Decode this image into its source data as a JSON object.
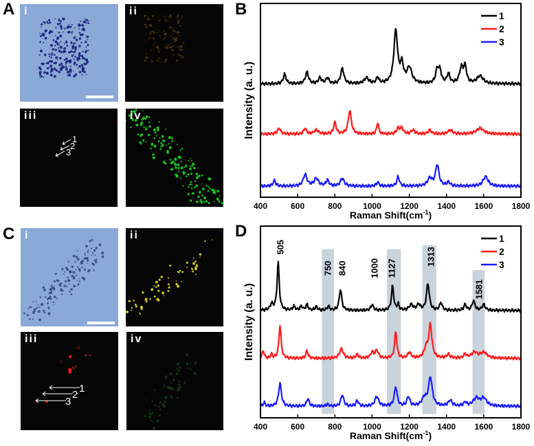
{
  "panel_labels": {
    "A": "A",
    "B": "B",
    "C": "C",
    "D": "D"
  },
  "subpanel_labels": {
    "i": "i",
    "ii": "ii",
    "iii": "iii",
    "iv": "iv"
  },
  "point_labels": [
    "1",
    "2",
    "3"
  ],
  "colors": {
    "series1": "#000000",
    "series2": "#ff1a1a",
    "series3": "#1a1aff",
    "band": "#c9d3dc",
    "green": "#22dd22",
    "yellow": "#d8d820",
    "red": "#ff2020",
    "brightfield": "#8aa9d6"
  },
  "chart_data": [
    {
      "id": "B",
      "type": "line",
      "title": "",
      "xlabel": "Raman Shift(cm-1)",
      "xlabel_main": "Raman Shift(cm",
      "xlabel_sup": "-1",
      "xlabel_close": ")",
      "ylabel": "Intensity (a. u.)",
      "xlim": [
        400,
        1800
      ],
      "ylim": [
        0,
        100
      ],
      "xticks": [
        "400",
        "600",
        "800",
        "1000",
        "1200",
        "1400",
        "1600",
        "1800"
      ],
      "grid": false,
      "legend": {
        "placement": "top-right",
        "entries": [
          "1",
          "2",
          "3"
        ]
      },
      "series": [
        {
          "name": "1",
          "baseline": 58.5,
          "peaks": [
            [
              530,
              5,
              9
            ],
            [
              650,
              6,
              10
            ],
            [
              720,
              3,
              10
            ],
            [
              760,
              3,
              9
            ],
            [
              840,
              8,
              10
            ],
            [
              970,
              3,
              14
            ],
            [
              1030,
              3,
              8
            ],
            [
              1127,
              27,
              12
            ],
            [
              1160,
              9,
              10
            ],
            [
              1200,
              8,
              16
            ],
            [
              1350,
              7,
              10
            ],
            [
              1365,
              6,
              9
            ],
            [
              1410,
              5,
              9
            ],
            [
              1480,
              8,
              12
            ],
            [
              1500,
              8,
              9
            ],
            [
              1580,
              4,
              20
            ]
          ]
        },
        {
          "name": "2",
          "baseline": 32.6,
          "peaks": [
            [
              500,
              3,
              10
            ],
            [
              640,
              3,
              8
            ],
            [
              700,
              2,
              14
            ],
            [
              800,
              6,
              8
            ],
            [
              880,
              12,
              10
            ],
            [
              1030,
              6,
              6
            ],
            [
              1140,
              3,
              9
            ],
            [
              1160,
              3,
              9
            ],
            [
              1220,
              2,
              12
            ],
            [
              1310,
              2,
              10
            ],
            [
              1420,
              2,
              14
            ],
            [
              1580,
              3,
              24
            ]
          ]
        },
        {
          "name": "3",
          "baseline": 5.7,
          "peaks": [
            [
              475,
              3,
              8
            ],
            [
              640,
              6,
              12
            ],
            [
              700,
              4,
              14
            ],
            [
              760,
              3,
              9
            ],
            [
              840,
              4,
              12
            ],
            [
              1030,
              2,
              8
            ],
            [
              1140,
              5,
              8
            ],
            [
              1310,
              4,
              14
            ],
            [
              1350,
              11,
              11
            ],
            [
              1410,
              2,
              10
            ],
            [
              1610,
              5,
              16
            ]
          ]
        }
      ]
    },
    {
      "id": "D",
      "type": "line",
      "title": "",
      "xlabel": "Raman Shift(cm-1)",
      "xlabel_main": "Raman Shift(cm",
      "xlabel_sup": "-1",
      "xlabel_close": ")",
      "ylabel": "Intensity (a. u.)",
      "xlim": [
        400,
        1800
      ],
      "ylim": [
        0,
        100
      ],
      "xticks": [
        "400",
        "600",
        "800",
        "1000",
        "1200",
        "1400",
        "1600",
        "1800"
      ],
      "grid": false,
      "legend": {
        "placement": "top-right",
        "entries": [
          "1",
          "2",
          "3"
        ]
      },
      "bands": [
        [
          730,
          795,
          88
        ],
        [
          1080,
          1155,
          88
        ],
        [
          1270,
          1345,
          90
        ],
        [
          1540,
          1605,
          77
        ]
      ],
      "annotations": [
        {
          "text": "505",
          "x": 507,
          "y": 89
        },
        {
          "text": "750",
          "x": 762,
          "y": 78
        },
        {
          "text": "840",
          "x": 840,
          "y": 78
        },
        {
          "text": "1000",
          "x": 1013,
          "y": 78
        },
        {
          "text": "1127",
          "x": 1105,
          "y": 78
        },
        {
          "text": "1313",
          "x": 1316,
          "y": 84
        },
        {
          "text": "1581",
          "x": 1575,
          "y": 67
        }
      ],
      "series": [
        {
          "name": "1",
          "baseline": 56,
          "peaks": [
            [
              495,
              25,
              7
            ],
            [
              460,
              3,
              10
            ],
            [
              580,
              2,
              8
            ],
            [
              620,
              2,
              8
            ],
            [
              650,
              3,
              7
            ],
            [
              700,
              2,
              8
            ],
            [
              765,
              2,
              8
            ],
            [
              830,
              11,
              8
            ],
            [
              1000,
              3,
              8
            ],
            [
              1110,
              13,
              7
            ],
            [
              1140,
              3,
              6
            ],
            [
              1210,
              3,
              12
            ],
            [
              1250,
              3,
              10
            ],
            [
              1300,
              14,
              9
            ],
            [
              1370,
              4,
              8
            ],
            [
              1500,
              3,
              8
            ],
            [
              1545,
              5,
              9
            ],
            [
              1600,
              3,
              10
            ]
          ]
        },
        {
          "name": "2",
          "baseline": 31,
          "peaks": [
            [
              415,
              4,
              6
            ],
            [
              460,
              2,
              6
            ],
            [
              505,
              17,
              7
            ],
            [
              650,
              4,
              7
            ],
            [
              835,
              5,
              12
            ],
            [
              920,
              2,
              8
            ],
            [
              1000,
              3,
              10
            ],
            [
              1025,
              4,
              10
            ],
            [
              1127,
              14,
              7
            ],
            [
              1200,
              3,
              10
            ],
            [
              1313,
              17,
              10
            ],
            [
              1290,
              5,
              12
            ],
            [
              1410,
              2,
              10
            ],
            [
              1500,
              2,
              8
            ],
            [
              1550,
              3,
              20
            ],
            [
              1600,
              3,
              20
            ]
          ]
        },
        {
          "name": "3",
          "baseline": 6,
          "peaks": [
            [
              420,
              2,
              6
            ],
            [
              505,
              12,
              9
            ],
            [
              655,
              4,
              8
            ],
            [
              760,
              1,
              8
            ],
            [
              840,
              6,
              9
            ],
            [
              920,
              3,
              8
            ],
            [
              1025,
              5,
              12
            ],
            [
              1127,
              10,
              9
            ],
            [
              1195,
              5,
              9
            ],
            [
              1313,
              15,
              12
            ],
            [
              1280,
              4,
              14
            ],
            [
              1420,
              3,
              12
            ],
            [
              1500,
              2,
              8
            ],
            [
              1560,
              4,
              20
            ],
            [
              1600,
              4,
              18
            ]
          ]
        }
      ]
    }
  ]
}
